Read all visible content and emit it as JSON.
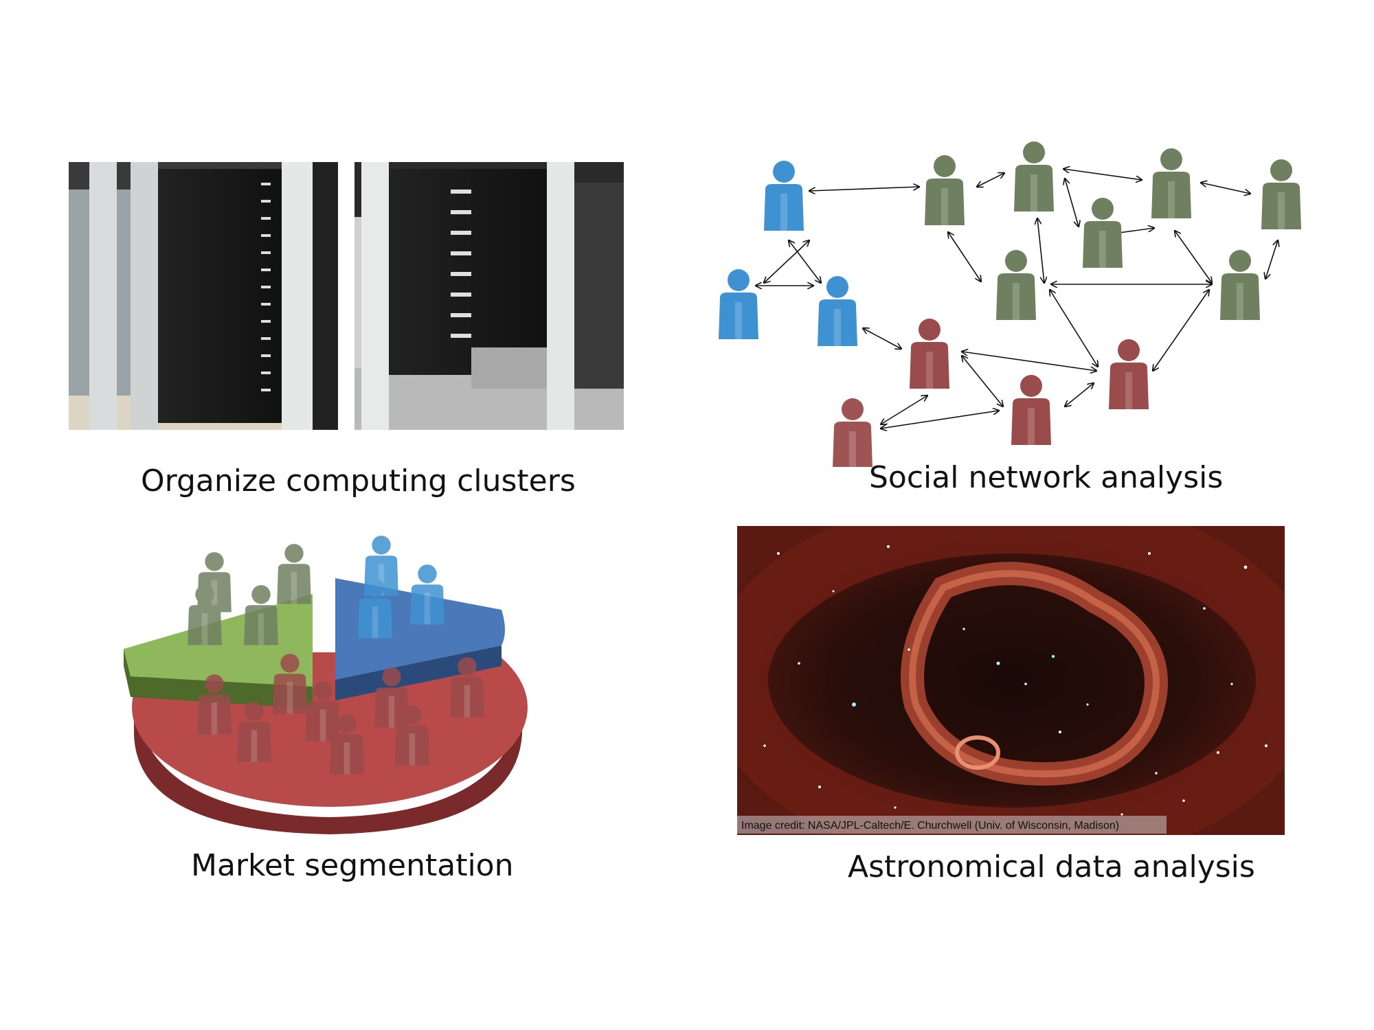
{
  "panels": {
    "clusters": {
      "caption": "Organize computing clusters"
    },
    "social": {
      "caption": "Social network analysis"
    },
    "market": {
      "caption": "Market segmentation"
    },
    "astro": {
      "caption": "Astronomical data analysis",
      "credit": "Image credit:  NASA/JPL-Caltech/E. Churchwell (Univ. of Wisconsin, Madison)"
    }
  },
  "colors": {
    "blue_person": "#3f92d2",
    "green_person": "#6f8060",
    "red_person": "#9a4b4b",
    "pie_red": "#b84a4a",
    "pie_green": "#8fb85c",
    "pie_blue": "#4a78b8",
    "nebula": "#c4503a",
    "space": "#140807"
  }
}
